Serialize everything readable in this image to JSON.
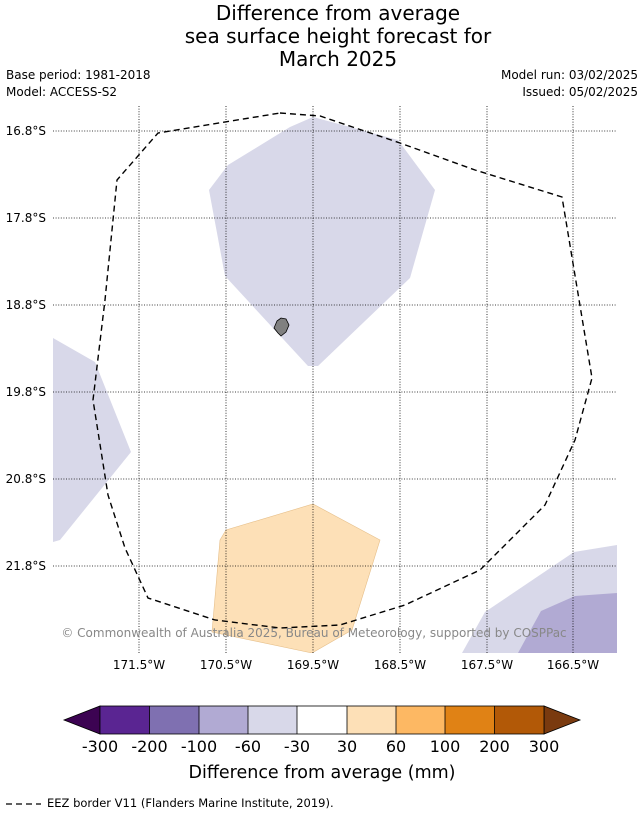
{
  "header": {
    "title_lines": [
      "Difference from average",
      "sea surface height forecast for",
      "March 2025"
    ],
    "base_period": "Base period: 1981-2018",
    "model": "Model: ACCESS-S2",
    "model_run": "Model run: 03/02/2025",
    "issued": "Issued: 05/02/2025"
  },
  "map": {
    "lat_labels": [
      "16.8°S",
      "17.8°S",
      "18.8°S",
      "19.8°S",
      "20.8°S",
      "21.8°S"
    ],
    "lon_labels": [
      "171.5°W",
      "170.5°W",
      "169.5°W",
      "168.5°W",
      "167.5°W",
      "166.5°W"
    ],
    "copyright": "© Commonwealth of Australia 2025, Bureau of Meteorology, supported by COSPPac",
    "anomaly_regions": [
      {
        "id": "north-central",
        "class_range": "-60 to -30 mm",
        "color": "#d8d8e9"
      },
      {
        "id": "west-edge",
        "class_range": "-60 to -30 mm",
        "color": "#d8d8e9"
      },
      {
        "id": "south-central",
        "class_range": "30 to 60 mm",
        "color": "#fde0b7"
      },
      {
        "id": "southeast-outer",
        "class_range": "-60 to -30 mm",
        "color": "#d8d8e9"
      },
      {
        "id": "southeast-inner",
        "class_range": "-100 to -60 mm",
        "color": "#b1aad3"
      }
    ],
    "island_color": "#808080"
  },
  "colorbar": {
    "title": "Difference from average (mm)",
    "tick_labels": [
      "-300",
      "-200",
      "-100",
      "-60",
      "-30",
      "30",
      "60",
      "100",
      "200",
      "300"
    ],
    "under_color": "#3c0352",
    "over_color": "#7a3a0f",
    "segment_colors": [
      "#5a2592",
      "#7f70b1",
      "#b1aad3",
      "#d8d8e9",
      "#ffffff",
      "#fde0b7",
      "#fdb863",
      "#e08215",
      "#b25907"
    ]
  },
  "legend": {
    "eez_text": "EEZ border V11 (Flanders Marine Institute, 2019)."
  }
}
